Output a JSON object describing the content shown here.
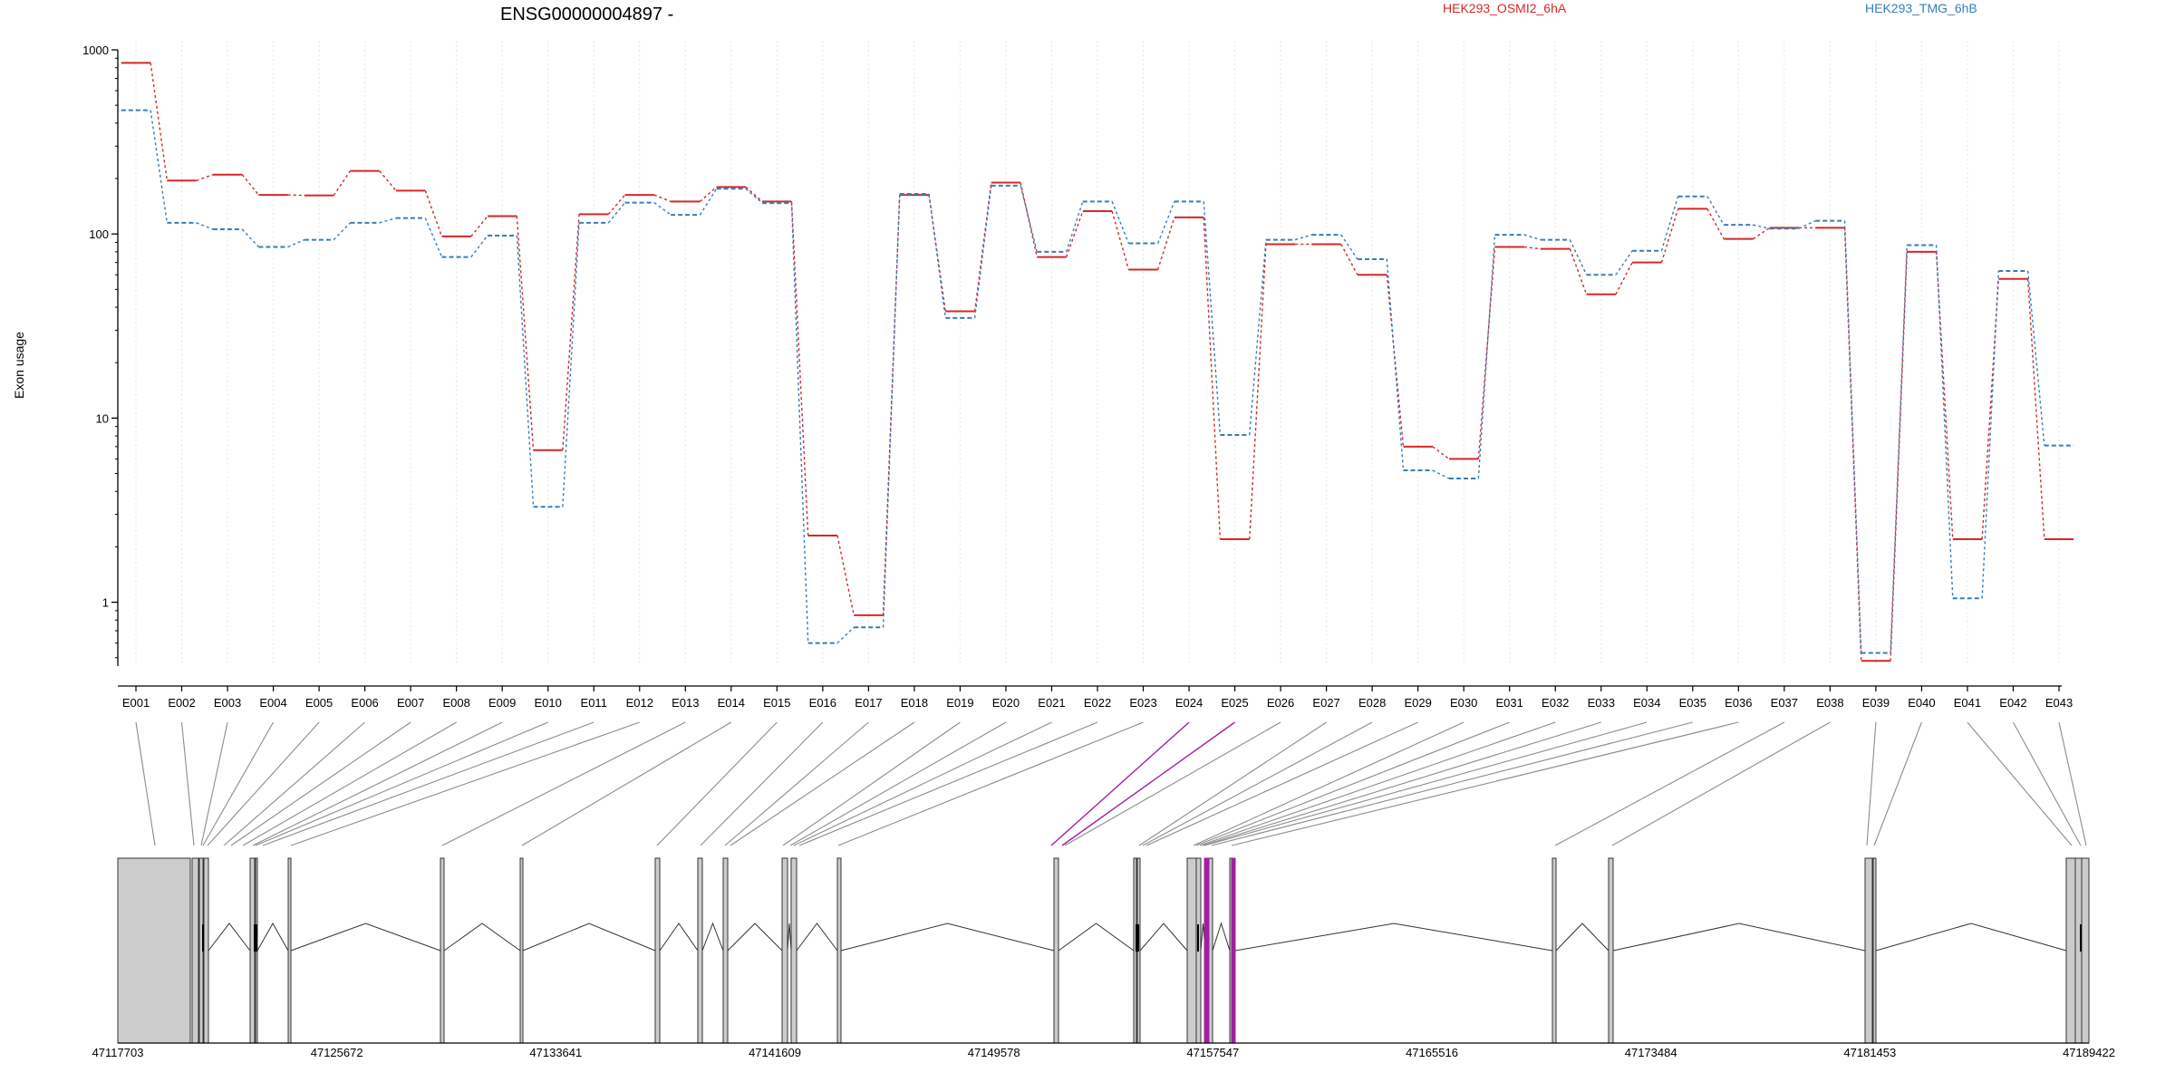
{
  "chart_data": {
    "type": "line",
    "title": "ENSG00000004897 -",
    "ylabel": "Exon usage",
    "xlabel": "",
    "y_scale": "log",
    "ylim": [
      0.45,
      1000
    ],
    "y_ticks": [
      {
        "value": 1000,
        "label": "1000"
      },
      {
        "value": 100,
        "label": "100"
      },
      {
        "value": 10,
        "label": "10"
      },
      {
        "value": 1,
        "label": "1"
      }
    ],
    "grid": "vertical dotted",
    "legend_placement": "top",
    "categories": [
      "E001",
      "E002",
      "E003",
      "E004",
      "E005",
      "E006",
      "E007",
      "E008",
      "E009",
      "E010",
      "E011",
      "E012",
      "E013",
      "E014",
      "E015",
      "E016",
      "E017",
      "E018",
      "E019",
      "E020",
      "E021",
      "E022",
      "E023",
      "E024",
      "E025",
      "E026",
      "E027",
      "E028",
      "E029",
      "E030",
      "E031",
      "E032",
      "E033",
      "E034",
      "E035",
      "E036",
      "E037",
      "E038",
      "E039",
      "E040",
      "E041",
      "E042",
      "E043"
    ],
    "series": [
      {
        "name": "HEK293_OSMI2_6hA",
        "color": "#d62728",
        "style": "solid",
        "values": [
          850,
          195,
          210,
          163,
          162,
          220,
          172,
          97,
          125,
          6.7,
          128,
          163,
          150,
          180,
          150,
          2.3,
          0.85,
          163,
          38,
          190,
          75,
          133,
          64,
          123,
          2.2,
          88,
          88,
          60,
          7,
          6,
          85,
          83,
          47,
          70,
          137,
          94,
          108,
          108,
          0.48,
          80,
          2.2,
          57,
          2.2
        ]
      },
      {
        "name": "HEK293_TMG_6hB",
        "color": "#377eb8",
        "style": "dashed",
        "values": [
          470,
          115,
          106,
          85,
          93,
          115,
          122,
          75,
          98,
          3.3,
          115,
          148,
          127,
          176,
          147,
          0.6,
          0.73,
          165,
          35,
          183,
          80,
          150,
          89,
          150,
          8.1,
          93,
          99,
          73,
          5.2,
          4.7,
          99,
          93,
          60,
          81,
          160,
          112,
          107,
          118,
          0.53,
          87,
          1.05,
          63,
          7.1
        ]
      }
    ],
    "gene_model": {
      "coordinate_ticks": [
        "47117703",
        "47125672",
        "47133641",
        "47141609",
        "47149578",
        "47157547",
        "47165516",
        "47173484",
        "47181453",
        "47189422"
      ],
      "highlight_color": "#a020a0",
      "exon_fill": "#cccccc",
      "highlighted_exons": [
        "E024",
        "E025"
      ]
    }
  }
}
